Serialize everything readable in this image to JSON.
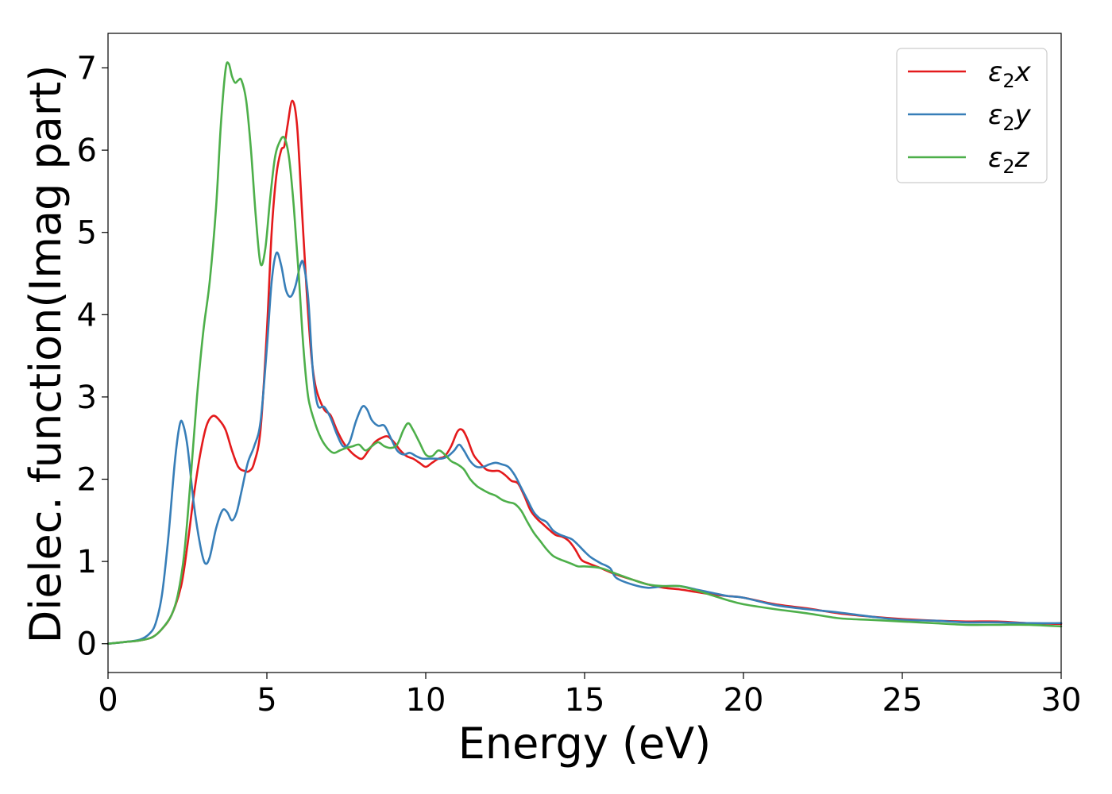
{
  "chart_data": {
    "type": "line",
    "xlabel": "Energy (eV)",
    "ylabel": "Dielec. function(Imag part)",
    "xlim": [
      0,
      30
    ],
    "ylim": [
      -0.35,
      7.42
    ],
    "xticks": [
      "0",
      "5",
      "10",
      "15",
      "20",
      "25",
      "30"
    ],
    "yticks": [
      "0",
      "1",
      "2",
      "3",
      "4",
      "5",
      "6",
      "7"
    ],
    "grid": false,
    "legend_position": "top-right",
    "series": [
      {
        "name": "ε2x",
        "legend": {
          "base": "ε",
          "sub": "2",
          "var": "x"
        },
        "color": "#e41a1c",
        "points": [
          [
            0,
            0
          ],
          [
            0.5,
            0.02
          ],
          [
            1,
            0.04
          ],
          [
            1.4,
            0.08
          ],
          [
            1.7,
            0.18
          ],
          [
            2,
            0.35
          ],
          [
            2.3,
            0.7
          ],
          [
            2.5,
            1.2
          ],
          [
            2.7,
            1.8
          ],
          [
            2.9,
            2.3
          ],
          [
            3.1,
            2.65
          ],
          [
            3.3,
            2.77
          ],
          [
            3.5,
            2.72
          ],
          [
            3.7,
            2.6
          ],
          [
            3.9,
            2.35
          ],
          [
            4.1,
            2.15
          ],
          [
            4.3,
            2.1
          ],
          [
            4.45,
            2.1
          ],
          [
            4.6,
            2.2
          ],
          [
            4.8,
            2.6
          ],
          [
            5.0,
            3.8
          ],
          [
            5.15,
            5.0
          ],
          [
            5.3,
            5.7
          ],
          [
            5.45,
            6.0
          ],
          [
            5.55,
            6.05
          ],
          [
            5.65,
            6.3
          ],
          [
            5.8,
            6.6
          ],
          [
            5.95,
            6.3
          ],
          [
            6.1,
            5.3
          ],
          [
            6.25,
            4.3
          ],
          [
            6.4,
            3.5
          ],
          [
            6.55,
            3.1
          ],
          [
            6.8,
            2.85
          ],
          [
            7.0,
            2.78
          ],
          [
            7.2,
            2.6
          ],
          [
            7.4,
            2.45
          ],
          [
            7.6,
            2.35
          ],
          [
            7.8,
            2.28
          ],
          [
            8.0,
            2.25
          ],
          [
            8.2,
            2.35
          ],
          [
            8.4,
            2.45
          ],
          [
            8.6,
            2.5
          ],
          [
            8.8,
            2.52
          ],
          [
            9.0,
            2.45
          ],
          [
            9.2,
            2.35
          ],
          [
            9.4,
            2.28
          ],
          [
            9.6,
            2.25
          ],
          [
            9.8,
            2.2
          ],
          [
            10.0,
            2.15
          ],
          [
            10.2,
            2.2
          ],
          [
            10.4,
            2.25
          ],
          [
            10.6,
            2.28
          ],
          [
            10.8,
            2.4
          ],
          [
            11.0,
            2.58
          ],
          [
            11.15,
            2.6
          ],
          [
            11.3,
            2.5
          ],
          [
            11.5,
            2.3
          ],
          [
            11.7,
            2.2
          ],
          [
            11.9,
            2.12
          ],
          [
            12.1,
            2.1
          ],
          [
            12.3,
            2.1
          ],
          [
            12.5,
            2.05
          ],
          [
            12.7,
            1.98
          ],
          [
            12.9,
            1.95
          ],
          [
            13.1,
            1.8
          ],
          [
            13.3,
            1.62
          ],
          [
            13.5,
            1.52
          ],
          [
            13.7,
            1.45
          ],
          [
            13.9,
            1.38
          ],
          [
            14.1,
            1.32
          ],
          [
            14.3,
            1.3
          ],
          [
            14.5,
            1.25
          ],
          [
            14.7,
            1.15
          ],
          [
            14.9,
            1.02
          ],
          [
            15.1,
            0.98
          ],
          [
            15.5,
            0.92
          ],
          [
            16.0,
            0.84
          ],
          [
            16.5,
            0.78
          ],
          [
            17.0,
            0.72
          ],
          [
            17.5,
            0.68
          ],
          [
            18.0,
            0.66
          ],
          [
            18.5,
            0.63
          ],
          [
            19.0,
            0.6
          ],
          [
            19.5,
            0.58
          ],
          [
            20.0,
            0.56
          ],
          [
            21.0,
            0.48
          ],
          [
            22.0,
            0.43
          ],
          [
            23.0,
            0.37
          ],
          [
            24.0,
            0.33
          ],
          [
            25.0,
            0.3
          ],
          [
            26.0,
            0.28
          ],
          [
            27.0,
            0.27
          ],
          [
            28.0,
            0.27
          ],
          [
            29.0,
            0.25
          ],
          [
            30.0,
            0.24
          ]
        ]
      },
      {
        "name": "ε2y",
        "legend": {
          "base": "ε",
          "sub": "2",
          "var": "y"
        },
        "color": "#377eb8",
        "points": [
          [
            0,
            0
          ],
          [
            0.5,
            0.02
          ],
          [
            1,
            0.05
          ],
          [
            1.3,
            0.12
          ],
          [
            1.5,
            0.25
          ],
          [
            1.7,
            0.6
          ],
          [
            1.9,
            1.3
          ],
          [
            2.1,
            2.2
          ],
          [
            2.25,
            2.65
          ],
          [
            2.35,
            2.68
          ],
          [
            2.5,
            2.4
          ],
          [
            2.7,
            1.7
          ],
          [
            2.9,
            1.2
          ],
          [
            3.05,
            0.98
          ],
          [
            3.2,
            1.05
          ],
          [
            3.4,
            1.4
          ],
          [
            3.6,
            1.62
          ],
          [
            3.75,
            1.6
          ],
          [
            3.9,
            1.5
          ],
          [
            4.05,
            1.6
          ],
          [
            4.2,
            1.85
          ],
          [
            4.4,
            2.2
          ],
          [
            4.6,
            2.4
          ],
          [
            4.8,
            2.7
          ],
          [
            5.0,
            3.6
          ],
          [
            5.15,
            4.4
          ],
          [
            5.3,
            4.75
          ],
          [
            5.45,
            4.6
          ],
          [
            5.6,
            4.3
          ],
          [
            5.75,
            4.22
          ],
          [
            5.9,
            4.35
          ],
          [
            6.05,
            4.6
          ],
          [
            6.15,
            4.62
          ],
          [
            6.3,
            4.2
          ],
          [
            6.45,
            3.3
          ],
          [
            6.6,
            2.9
          ],
          [
            6.8,
            2.88
          ],
          [
            7.0,
            2.75
          ],
          [
            7.2,
            2.55
          ],
          [
            7.4,
            2.4
          ],
          [
            7.6,
            2.45
          ],
          [
            7.8,
            2.7
          ],
          [
            8.0,
            2.88
          ],
          [
            8.15,
            2.85
          ],
          [
            8.3,
            2.72
          ],
          [
            8.5,
            2.65
          ],
          [
            8.7,
            2.65
          ],
          [
            8.9,
            2.5
          ],
          [
            9.1,
            2.35
          ],
          [
            9.3,
            2.3
          ],
          [
            9.5,
            2.32
          ],
          [
            9.7,
            2.28
          ],
          [
            9.9,
            2.25
          ],
          [
            10.1,
            2.25
          ],
          [
            10.3,
            2.25
          ],
          [
            10.5,
            2.25
          ],
          [
            10.7,
            2.28
          ],
          [
            10.9,
            2.35
          ],
          [
            11.05,
            2.42
          ],
          [
            11.2,
            2.35
          ],
          [
            11.4,
            2.22
          ],
          [
            11.6,
            2.15
          ],
          [
            11.8,
            2.15
          ],
          [
            12.0,
            2.18
          ],
          [
            12.2,
            2.2
          ],
          [
            12.4,
            2.18
          ],
          [
            12.6,
            2.15
          ],
          [
            12.8,
            2.05
          ],
          [
            13.0,
            1.9
          ],
          [
            13.2,
            1.75
          ],
          [
            13.4,
            1.6
          ],
          [
            13.6,
            1.52
          ],
          [
            13.8,
            1.48
          ],
          [
            14.0,
            1.38
          ],
          [
            14.2,
            1.33
          ],
          [
            14.4,
            1.3
          ],
          [
            14.6,
            1.27
          ],
          [
            14.8,
            1.2
          ],
          [
            15.0,
            1.12
          ],
          [
            15.2,
            1.05
          ],
          [
            15.5,
            0.98
          ],
          [
            15.8,
            0.92
          ],
          [
            16.0,
            0.8
          ],
          [
            16.5,
            0.72
          ],
          [
            17.0,
            0.68
          ],
          [
            17.5,
            0.7
          ],
          [
            18.0,
            0.7
          ],
          [
            18.5,
            0.66
          ],
          [
            19.0,
            0.62
          ],
          [
            19.5,
            0.58
          ],
          [
            20.0,
            0.56
          ],
          [
            21.0,
            0.47
          ],
          [
            22.0,
            0.42
          ],
          [
            23.0,
            0.38
          ],
          [
            24.0,
            0.33
          ],
          [
            25.0,
            0.29
          ],
          [
            26.0,
            0.28
          ],
          [
            27.0,
            0.26
          ],
          [
            28.0,
            0.26
          ],
          [
            29.0,
            0.25
          ],
          [
            30.0,
            0.25
          ]
        ]
      },
      {
        "name": "ε2z",
        "legend": {
          "base": "ε",
          "sub": "2",
          "var": "z"
        },
        "color": "#4daf4a",
        "points": [
          [
            0,
            0
          ],
          [
            0.5,
            0.02
          ],
          [
            1,
            0.04
          ],
          [
            1.4,
            0.08
          ],
          [
            1.7,
            0.18
          ],
          [
            2,
            0.35
          ],
          [
            2.2,
            0.6
          ],
          [
            2.4,
            1.1
          ],
          [
            2.6,
            2.0
          ],
          [
            2.8,
            3.0
          ],
          [
            3.0,
            3.8
          ],
          [
            3.2,
            4.4
          ],
          [
            3.4,
            5.3
          ],
          [
            3.55,
            6.3
          ],
          [
            3.7,
            6.98
          ],
          [
            3.8,
            7.05
          ],
          [
            3.9,
            6.9
          ],
          [
            4.0,
            6.82
          ],
          [
            4.1,
            6.85
          ],
          [
            4.2,
            6.85
          ],
          [
            4.35,
            6.6
          ],
          [
            4.5,
            6.0
          ],
          [
            4.65,
            5.2
          ],
          [
            4.8,
            4.62
          ],
          [
            4.95,
            4.8
          ],
          [
            5.1,
            5.4
          ],
          [
            5.25,
            5.9
          ],
          [
            5.4,
            6.1
          ],
          [
            5.55,
            6.15
          ],
          [
            5.7,
            5.9
          ],
          [
            5.85,
            5.3
          ],
          [
            6.0,
            4.5
          ],
          [
            6.15,
            3.6
          ],
          [
            6.3,
            3.0
          ],
          [
            6.5,
            2.7
          ],
          [
            6.7,
            2.5
          ],
          [
            6.9,
            2.38
          ],
          [
            7.1,
            2.32
          ],
          [
            7.3,
            2.35
          ],
          [
            7.5,
            2.38
          ],
          [
            7.7,
            2.4
          ],
          [
            7.9,
            2.42
          ],
          [
            8.1,
            2.35
          ],
          [
            8.3,
            2.4
          ],
          [
            8.5,
            2.45
          ],
          [
            8.7,
            2.4
          ],
          [
            8.9,
            2.38
          ],
          [
            9.1,
            2.42
          ],
          [
            9.3,
            2.6
          ],
          [
            9.45,
            2.68
          ],
          [
            9.6,
            2.6
          ],
          [
            9.8,
            2.45
          ],
          [
            10.0,
            2.3
          ],
          [
            10.2,
            2.28
          ],
          [
            10.4,
            2.35
          ],
          [
            10.6,
            2.3
          ],
          [
            10.8,
            2.22
          ],
          [
            11.0,
            2.18
          ],
          [
            11.2,
            2.12
          ],
          [
            11.4,
            2.0
          ],
          [
            11.6,
            1.92
          ],
          [
            11.8,
            1.87
          ],
          [
            12.0,
            1.83
          ],
          [
            12.2,
            1.8
          ],
          [
            12.4,
            1.75
          ],
          [
            12.6,
            1.72
          ],
          [
            12.8,
            1.7
          ],
          [
            13.0,
            1.62
          ],
          [
            13.2,
            1.48
          ],
          [
            13.4,
            1.35
          ],
          [
            13.6,
            1.25
          ],
          [
            13.8,
            1.15
          ],
          [
            14.0,
            1.07
          ],
          [
            14.2,
            1.03
          ],
          [
            14.4,
            1.0
          ],
          [
            14.6,
            0.97
          ],
          [
            14.8,
            0.94
          ],
          [
            15.0,
            0.94
          ],
          [
            15.5,
            0.92
          ],
          [
            16.0,
            0.85
          ],
          [
            16.5,
            0.78
          ],
          [
            17.0,
            0.72
          ],
          [
            17.5,
            0.7
          ],
          [
            18.0,
            0.7
          ],
          [
            18.5,
            0.65
          ],
          [
            19.0,
            0.59
          ],
          [
            19.5,
            0.53
          ],
          [
            20.0,
            0.48
          ],
          [
            21.0,
            0.42
          ],
          [
            22.0,
            0.37
          ],
          [
            23.0,
            0.31
          ],
          [
            24.0,
            0.29
          ],
          [
            25.0,
            0.27
          ],
          [
            26.0,
            0.25
          ],
          [
            27.0,
            0.23
          ],
          [
            28.0,
            0.23
          ],
          [
            29.0,
            0.23
          ],
          [
            30.0,
            0.21
          ]
        ]
      }
    ]
  }
}
